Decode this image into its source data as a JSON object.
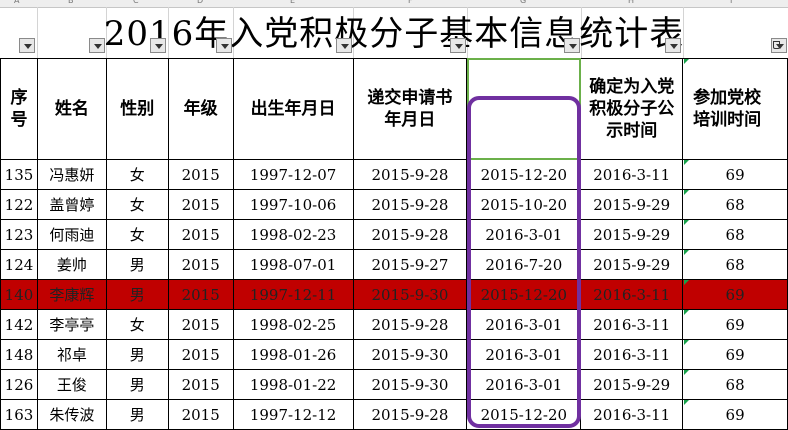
{
  "sheet": {
    "title": "2016年入党积极分子基本信息统计表",
    "column_letters": [
      "A",
      "B",
      "C",
      "D",
      "E",
      "F",
      "G",
      "H",
      "I"
    ],
    "headers": {
      "seq": "序号",
      "name": "姓名",
      "gender": "性别",
      "grade": "年级",
      "birth": "出生年月日",
      "apply": "递交申请书年月日",
      "blank": "",
      "confirm": "确定为入党积极分子公示时间",
      "training": "参加党校培训时间"
    },
    "rows": [
      {
        "id": "135",
        "name": "冯惠妍",
        "gender": "女",
        "grade": "2015",
        "birth": "1997-12-07",
        "apply": "2015-9-28",
        "date2": "2015-12-20",
        "confirm": "2016-3-11",
        "training": "69"
      },
      {
        "id": "122",
        "name": "盖曾婷",
        "gender": "女",
        "grade": "2015",
        "birth": "1997-10-06",
        "apply": "2015-9-28",
        "date2": "2015-10-20",
        "confirm": "2015-9-29",
        "training": "68"
      },
      {
        "id": "123",
        "name": "何雨迪",
        "gender": "女",
        "grade": "2015",
        "birth": "1998-02-23",
        "apply": "2015-9-28",
        "date2": "2016-3-01",
        "confirm": "2015-9-29",
        "training": "68"
      },
      {
        "id": "124",
        "name": "姜帅",
        "gender": "男",
        "grade": "2015",
        "birth": "1998-07-01",
        "apply": "2015-9-27",
        "date2": "2016-7-20",
        "confirm": "2015-9-29",
        "training": "68"
      },
      {
        "id": "140",
        "name": "李康辉",
        "gender": "男",
        "grade": "2015",
        "birth": "1997-12-11",
        "apply": "2015-9-30",
        "date2": "2015-12-20",
        "confirm": "2016-3-11",
        "training": "69"
      },
      {
        "id": "142",
        "name": "李亭亭",
        "gender": "女",
        "grade": "2015",
        "birth": "1998-02-25",
        "apply": "2015-9-28",
        "date2": "2016-3-01",
        "confirm": "2016-3-11",
        "training": "69"
      },
      {
        "id": "148",
        "name": "祁卓",
        "gender": "男",
        "grade": "2015",
        "birth": "1998-01-26",
        "apply": "2015-9-30",
        "date2": "2016-3-01",
        "confirm": "2016-3-11",
        "training": "69"
      },
      {
        "id": "126",
        "name": "王俊",
        "gender": "男",
        "grade": "2015",
        "birth": "1998-01-22",
        "apply": "2015-9-30",
        "date2": "2016-3-01",
        "confirm": "2015-9-29",
        "training": "68"
      },
      {
        "id": "163",
        "name": "朱传波",
        "gender": "男",
        "grade": "2015",
        "birth": "1997-12-12",
        "apply": "2015-9-28",
        "date2": "2015-12-20",
        "confirm": "2016-3-11",
        "training": "69"
      }
    ],
    "highlighted_row_index": 4,
    "colors": {
      "highlight_row": "#c00000",
      "annotation_box": "#7030a0",
      "selection_border": "#6bb04a",
      "comment_marker": "#17a14a"
    }
  }
}
